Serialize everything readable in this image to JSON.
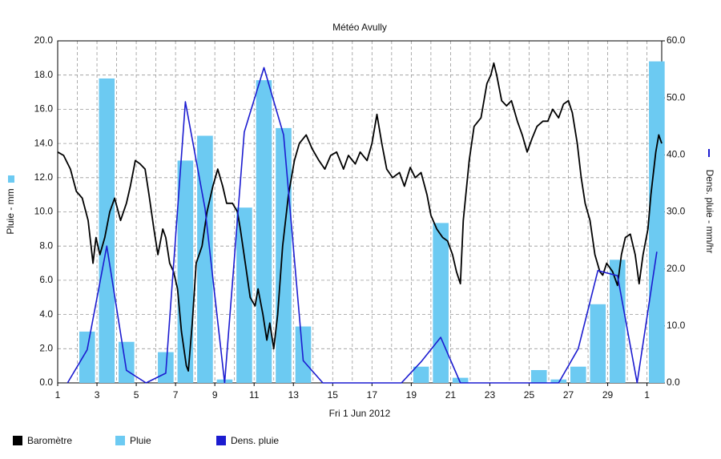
{
  "chart_data": {
    "type": "combo",
    "title": "Météo Avully",
    "xlabel": "Fri 1 Jun 2012",
    "ylabel": "Pluie - mm",
    "y2label": "Dens. pluie - mm/hr",
    "xlim": [
      1,
      31.75
    ],
    "xticks": [
      1,
      3,
      5,
      7,
      9,
      11,
      13,
      15,
      17,
      19,
      21,
      23,
      25,
      27,
      29,
      {
        "value": 31,
        "label": "1"
      }
    ],
    "ylim": [
      0,
      20
    ],
    "yticks": [
      {
        "value": 0,
        "label": "0.0"
      },
      {
        "value": 2,
        "label": "2.0"
      },
      {
        "value": 4,
        "label": "4.0"
      },
      {
        "value": 6,
        "label": "6.0"
      },
      {
        "value": 8,
        "label": "8.0"
      },
      {
        "value": 10,
        "label": "10.0"
      },
      {
        "value": 12,
        "label": "12.0"
      },
      {
        "value": 14,
        "label": "14.0"
      },
      {
        "value": 16,
        "label": "16.0"
      },
      {
        "value": 18,
        "label": "18.0"
      },
      {
        "value": 20,
        "label": "20.0"
      }
    ],
    "y2lim": [
      0,
      60
    ],
    "y2ticks": [
      {
        "value": 0,
        "label": "0.0"
      },
      {
        "value": 10,
        "label": "10.0"
      },
      {
        "value": 20,
        "label": "20.0"
      },
      {
        "value": 30,
        "label": "30.0"
      },
      {
        "value": 40,
        "label": "40.0"
      },
      {
        "value": 50,
        "label": "50.0"
      },
      {
        "value": 60,
        "label": "60.0"
      }
    ],
    "grid": true,
    "legend": "bottom",
    "series": [
      {
        "name": "Baromètre",
        "type": "line",
        "color": "#000000",
        "x": [
          1.0,
          1.3,
          1.65,
          1.95,
          2.25,
          2.55,
          2.8,
          2.95,
          3.15,
          3.4,
          3.65,
          3.9,
          4.2,
          4.5,
          4.7,
          4.95,
          5.2,
          5.45,
          5.65,
          5.9,
          6.1,
          6.35,
          6.5,
          6.7,
          6.9,
          7.1,
          7.3,
          7.55,
          7.65,
          7.85,
          8.05,
          8.35,
          8.6,
          8.9,
          9.15,
          9.4,
          9.6,
          9.9,
          10.15,
          10.3,
          10.55,
          10.8,
          11.05,
          11.2,
          11.45,
          11.65,
          11.8,
          12.0,
          12.2,
          12.45,
          12.75,
          13.05,
          13.3,
          13.65,
          13.95,
          14.3,
          14.6,
          14.9,
          15.2,
          15.55,
          15.8,
          16.15,
          16.4,
          16.75,
          17.0,
          17.25,
          17.5,
          17.75,
          18.05,
          18.4,
          18.65,
          18.95,
          19.2,
          19.5,
          19.8,
          20.0,
          20.3,
          20.6,
          20.85,
          21.1,
          21.3,
          21.5,
          21.65,
          21.95,
          22.2,
          22.55,
          22.85,
          23.05,
          23.2,
          23.35,
          23.6,
          23.85,
          24.1,
          24.4,
          24.65,
          24.9,
          25.15,
          25.4,
          25.7,
          25.95,
          26.2,
          26.5,
          26.75,
          27.0,
          27.2,
          27.45,
          27.65,
          27.85,
          28.1,
          28.35,
          28.6,
          28.75,
          28.95,
          29.25,
          29.5,
          29.7,
          29.9,
          30.15,
          30.4,
          30.6,
          30.8,
          31.05,
          31.2,
          31.45,
          31.6,
          31.75
        ],
        "values": [
          13.5,
          13.3,
          12.5,
          11.2,
          10.8,
          9.5,
          7.0,
          8.5,
          7.5,
          8.5,
          10.0,
          10.8,
          9.5,
          10.5,
          11.5,
          13.0,
          12.8,
          12.5,
          11.0,
          9.0,
          7.5,
          9.0,
          8.5,
          7.0,
          6.5,
          5.5,
          3.0,
          1.0,
          0.7,
          3.5,
          7.0,
          8.0,
          10.0,
          11.5,
          12.5,
          11.5,
          10.5,
          10.5,
          10.0,
          9.0,
          7.0,
          5.0,
          4.5,
          5.5,
          4.0,
          2.5,
          3.5,
          2.0,
          4.0,
          8.0,
          11.0,
          13.0,
          14.0,
          14.5,
          13.7,
          13.0,
          12.5,
          13.3,
          13.5,
          12.5,
          13.3,
          12.8,
          13.5,
          13.0,
          14.0,
          15.7,
          14.0,
          12.5,
          12.0,
          12.3,
          11.5,
          12.6,
          12.0,
          12.3,
          11.0,
          9.8,
          9.0,
          8.5,
          8.3,
          7.5,
          6.5,
          5.8,
          9.5,
          13.0,
          15.0,
          15.5,
          17.5,
          18.0,
          18.7,
          18.0,
          16.5,
          16.2,
          16.5,
          15.3,
          14.5,
          13.5,
          14.3,
          15.0,
          15.3,
          15.3,
          16.0,
          15.5,
          16.3,
          16.5,
          15.8,
          14.0,
          12.0,
          10.5,
          9.5,
          7.5,
          6.5,
          6.3,
          7.0,
          6.5,
          5.7,
          7.5,
          8.5,
          8.7,
          7.5,
          5.8,
          7.5,
          9.0,
          11.0,
          13.5,
          14.5,
          14.0
        ]
      },
      {
        "name": "Pluie",
        "type": "bar",
        "color": "#6ccaf2",
        "x": [
          2.5,
          3.5,
          4.5,
          6.5,
          7.5,
          8.5,
          9.5,
          10.5,
          11.5,
          12.5,
          13.5,
          19.5,
          20.5,
          21.5,
          25.5,
          26.5,
          27.5,
          28.5,
          29.5,
          31.5
        ],
        "values": [
          3.0,
          17.8,
          2.4,
          1.8,
          13.0,
          14.45,
          0.2,
          10.25,
          17.7,
          14.9,
          3.3,
          0.95,
          9.35,
          0.3,
          0.75,
          0.2,
          0.95,
          4.6,
          7.2,
          18.8
        ]
      },
      {
        "name": "Dens. pluie",
        "type": "line",
        "color": "#1c1cd0",
        "axis": "y2",
        "x": [
          1.5,
          2.5,
          3.5,
          4.5,
          5.5,
          6.5,
          7.5,
          8.5,
          9.5,
          10.5,
          11.5,
          12.5,
          13.5,
          14.5,
          15.5,
          16.5,
          17.5,
          18.5,
          19.5,
          20.5,
          21.5,
          22.5,
          23.5,
          24.5,
          25.5,
          26.5,
          27.5,
          28.5,
          29.5,
          30.5,
          31.5
        ],
        "values": [
          0,
          5.8,
          24,
          2.2,
          0,
          1.7,
          49.3,
          30.6,
          0,
          44,
          55.3,
          43.5,
          3.9,
          0,
          0,
          0,
          0,
          0,
          3.7,
          8,
          0,
          0,
          0,
          0,
          0,
          0,
          6,
          19.7,
          18.8,
          0,
          23
        ]
      }
    ]
  }
}
